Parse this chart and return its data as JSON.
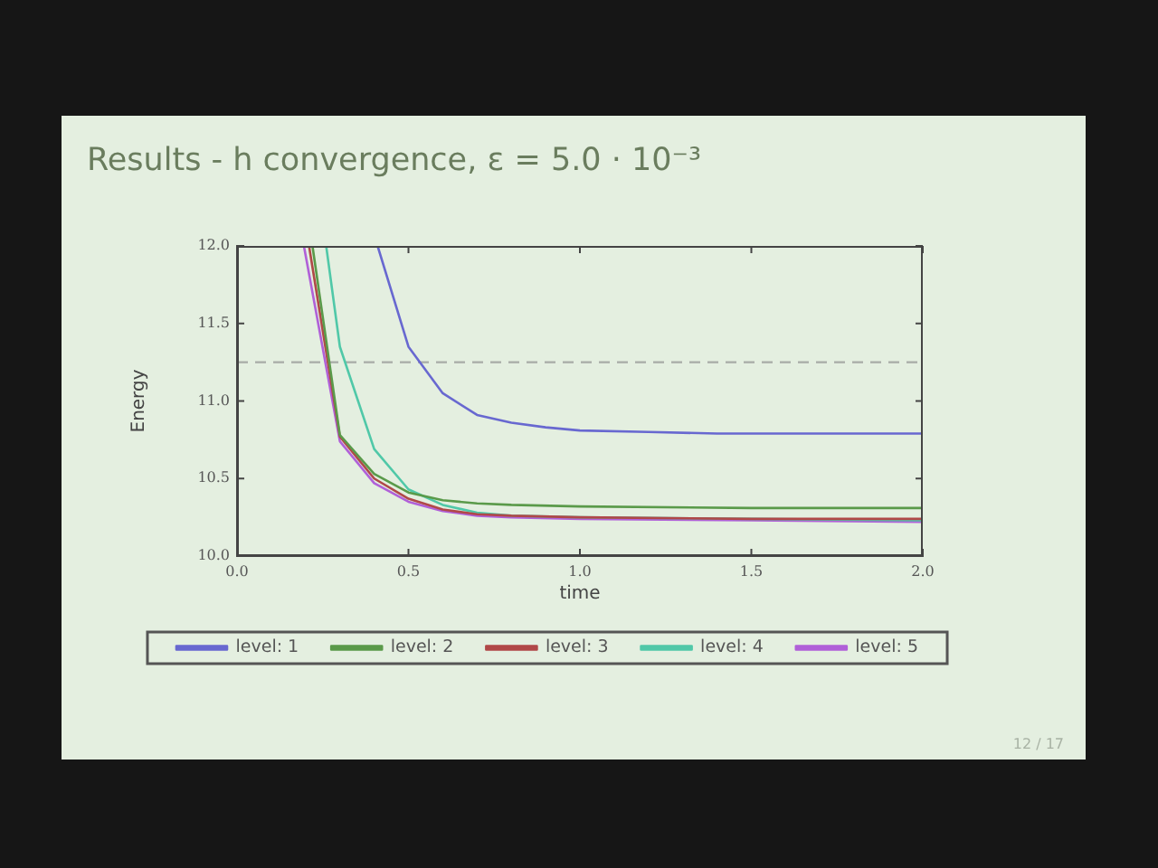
{
  "chart_data": {
    "type": "line",
    "title": "Results - h convergence, ε = 5.0 · 10⁻³",
    "xlabel": "time",
    "ylabel": "Energy",
    "xlim": [
      0,
      2
    ],
    "xticks": [
      {
        "value": 0,
        "label": "0.0"
      },
      {
        "value": 0.5,
        "label": "0.5"
      },
      {
        "value": 1,
        "label": "1.0"
      },
      {
        "value": 1.5,
        "label": "1.5"
      },
      {
        "value": 2,
        "label": "2.0"
      }
    ],
    "ylim": [
      10,
      12
    ],
    "yticks": [
      {
        "value": 10,
        "label": "10.0"
      },
      {
        "value": 10.5,
        "label": "10.5"
      },
      {
        "value": 11,
        "label": "11.0"
      },
      {
        "value": 11.5,
        "label": "11.5"
      },
      {
        "value": 12,
        "label": "12.0"
      }
    ],
    "series": [
      {
        "name": "level: 1",
        "color": "#6868d0",
        "x": [
          0.41,
          0.5,
          0.6,
          0.7,
          0.8,
          0.9,
          1.0,
          1.2,
          1.4,
          1.6,
          1.8,
          2.0
        ],
        "values": [
          12.0,
          11.35,
          11.05,
          10.91,
          10.86,
          10.83,
          10.81,
          10.8,
          10.79,
          10.79,
          10.79,
          10.79
        ]
      },
      {
        "name": "level: 2",
        "color": "#5a9a4a",
        "x": [
          0.22,
          0.3,
          0.4,
          0.5,
          0.6,
          0.7,
          0.8,
          1.0,
          1.5,
          2.0
        ],
        "values": [
          12.0,
          10.78,
          10.53,
          10.41,
          10.36,
          10.34,
          10.33,
          10.32,
          10.31,
          10.31
        ]
      },
      {
        "name": "level: 3",
        "color": "#b04848",
        "x": [
          0.21,
          0.3,
          0.4,
          0.5,
          0.6,
          0.7,
          0.8,
          1.0,
          1.5,
          2.0
        ],
        "values": [
          12.0,
          10.77,
          10.5,
          10.37,
          10.3,
          10.27,
          10.26,
          10.25,
          10.24,
          10.24
        ]
      },
      {
        "name": "level: 4",
        "color": "#50c8a8",
        "x": [
          0.26,
          0.3,
          0.4,
          0.5,
          0.6,
          0.7,
          0.8,
          1.0,
          1.5,
          2.0
        ],
        "values": [
          12.0,
          11.35,
          10.69,
          10.43,
          10.33,
          10.28,
          10.26,
          10.25,
          10.24,
          10.23
        ]
      },
      {
        "name": "level: 5",
        "color": "#b060d8",
        "x": [
          0.195,
          0.3,
          0.4,
          0.5,
          0.6,
          0.7,
          0.8,
          1.0,
          1.5,
          2.0
        ],
        "values": [
          12.0,
          10.74,
          10.47,
          10.35,
          10.29,
          10.26,
          10.25,
          10.24,
          10.23,
          10.22
        ]
      }
    ],
    "ref_lines": [
      {
        "axis": "y",
        "value": 11.25,
        "color": "#a8aca6",
        "line_style": "dashed"
      }
    ],
    "grid": false,
    "legend": "bottom",
    "annotations": [
      "12 / 17"
    ]
  }
}
